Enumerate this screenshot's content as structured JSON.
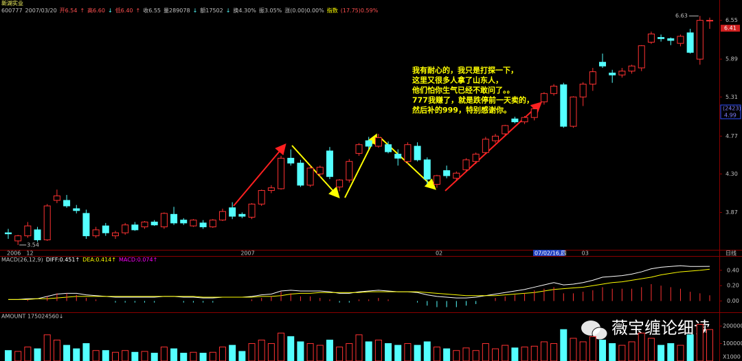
{
  "chart_data": [
    {
      "type": "candlestick",
      "title": "新湖实业",
      "header": [
        {
          "text": "600777",
          "color": "#c0c0c0"
        },
        {
          "text": "2007/03/20",
          "color": "#c0c0c0"
        },
        {
          "text": "开6.54",
          "color": "#ff5050"
        },
        {
          "text": "↑",
          "color": "#ff5050"
        },
        {
          "text": "高6.60",
          "color": "#ff5050"
        },
        {
          "text": "↓",
          "color": "#54ffff"
        },
        {
          "text": "低6.40",
          "color": "#ff5050"
        },
        {
          "text": "↑",
          "color": "#ff5050"
        },
        {
          "text": "收6.55",
          "color": "#c0c0c0"
        },
        {
          "text": "量289078",
          "color": "#c0c0c0"
        },
        {
          "text": "↓",
          "color": "#54ffff"
        },
        {
          "text": "额17502",
          "color": "#c0c0c0"
        },
        {
          "text": "↓",
          "color": "#54ffff"
        },
        {
          "text": "换4.30%",
          "color": "#c0c0c0"
        },
        {
          "text": "振3.05%",
          "color": "#c0c0c0"
        },
        {
          "text": "涨(0.00)0.00%",
          "color": "#c0c0c0"
        },
        {
          "text": "指数",
          "color": "#ffff00"
        },
        {
          "text": "(17.75)0.59%",
          "color": "#ff5050"
        }
      ],
      "categories": [
        "2006",
        null,
        "12",
        null,
        null,
        null,
        null,
        null,
        null,
        null,
        null,
        null,
        null,
        null,
        null,
        null,
        null,
        null,
        null,
        null,
        null,
        null,
        null,
        null,
        "2007",
        null,
        null,
        null,
        null,
        null,
        null,
        null,
        null,
        null,
        null,
        null,
        null,
        null,
        null,
        null,
        null,
        null,
        null,
        null,
        "02",
        null,
        null,
        null,
        null,
        null,
        null,
        null,
        null,
        null,
        null,
        null,
        null,
        null,
        null,
        "03",
        null,
        null,
        null,
        null,
        null,
        null,
        null,
        null,
        null,
        null,
        null,
        null,
        null
      ],
      "open": [
        3.66,
        3.58,
        3.63,
        3.69,
        3.59,
        4.0,
        4.0,
        3.91,
        3.86,
        3.63,
        3.73,
        3.63,
        3.66,
        3.74,
        3.72,
        3.77,
        3.72,
        3.85,
        3.79,
        3.73,
        3.76,
        3.72,
        3.79,
        3.92,
        3.85,
        3.82,
        3.96,
        4.11,
        4.13,
        4.49,
        4.43,
        4.17,
        4.3,
        4.58,
        4.15,
        4.23,
        4.55,
        4.71,
        4.64,
        4.66,
        4.54,
        4.45,
        4.64,
        4.47,
        4.18,
        4.34,
        4.25,
        4.35,
        4.45,
        4.56,
        4.71,
        4.8,
        5.0,
        4.96,
        5.02,
        5.24,
        5.36,
        5.49,
        4.9,
        5.31,
        5.5,
        5.84,
        5.67,
        5.64,
        5.7,
        5.75,
        6.17,
        6.25,
        6.23,
        6.15,
        6.33,
        5.89,
        6.54
      ],
      "high": [
        3.7,
        3.64,
        3.77,
        3.72,
        3.96,
        4.12,
        4.06,
        3.95,
        3.9,
        3.72,
        3.76,
        3.68,
        3.76,
        3.77,
        3.78,
        3.79,
        3.87,
        3.93,
        3.81,
        3.8,
        3.79,
        3.8,
        3.91,
        3.98,
        3.87,
        3.97,
        4.12,
        4.17,
        4.52,
        4.6,
        4.47,
        4.4,
        4.4,
        4.63,
        4.24,
        4.48,
        4.68,
        4.76,
        4.8,
        4.7,
        4.6,
        4.69,
        4.69,
        4.5,
        4.29,
        4.4,
        4.33,
        4.49,
        4.56,
        4.76,
        4.8,
        4.92,
        5.03,
        5.04,
        5.15,
        5.38,
        5.5,
        5.52,
        5.32,
        5.53,
        5.75,
        5.98,
        5.72,
        5.75,
        5.8,
        6.12,
        6.35,
        6.3,
        6.25,
        6.3,
        6.4,
        6.63,
        6.6
      ],
      "low": [
        3.6,
        3.54,
        3.61,
        3.57,
        3.58,
        3.97,
        3.92,
        3.86,
        3.6,
        3.61,
        3.63,
        3.6,
        3.64,
        3.68,
        3.7,
        3.73,
        3.7,
        3.74,
        3.74,
        3.72,
        3.7,
        3.71,
        3.78,
        3.8,
        3.81,
        3.8,
        3.94,
        4.08,
        4.12,
        4.4,
        4.15,
        4.15,
        4.26,
        4.24,
        4.1,
        4.2,
        4.52,
        4.6,
        4.62,
        4.55,
        4.4,
        4.42,
        4.45,
        4.18,
        4.14,
        4.25,
        4.22,
        4.32,
        4.42,
        4.54,
        4.68,
        4.77,
        4.94,
        4.93,
        4.98,
        5.2,
        5.33,
        4.88,
        4.88,
        5.18,
        5.4,
        5.75,
        5.52,
        5.6,
        5.66,
        5.7,
        6.14,
        6.18,
        6.12,
        6.1,
        5.98,
        5.8,
        6.4
      ],
      "close": [
        3.65,
        3.63,
        3.73,
        3.59,
        3.94,
        4.05,
        3.94,
        3.89,
        3.63,
        3.69,
        3.66,
        3.66,
        3.74,
        3.69,
        3.77,
        3.74,
        3.86,
        3.76,
        3.76,
        3.79,
        3.72,
        3.79,
        3.88,
        3.83,
        3.83,
        3.96,
        4.11,
        4.14,
        4.49,
        4.43,
        4.17,
        4.37,
        4.38,
        4.27,
        4.23,
        4.45,
        4.66,
        4.64,
        4.75,
        4.57,
        4.49,
        4.66,
        4.47,
        4.24,
        4.28,
        4.28,
        4.31,
        4.47,
        4.54,
        4.73,
        4.77,
        4.91,
        4.96,
        5.02,
        5.14,
        5.36,
        5.47,
        4.9,
        5.31,
        5.5,
        5.69,
        5.78,
        5.64,
        5.7,
        5.78,
        6.11,
        6.31,
        6.23,
        6.2,
        6.27,
        6.0,
        6.55,
        6.55
      ],
      "up_color": "#ff3232",
      "down_color": "#54ffff",
      "log_scale": true,
      "ylim": [
        3.5,
        6.67
      ],
      "yticks": [
        3.87,
        {
          "value": 4.3,
          "label": "4.30"
        },
        4.77,
        5.31,
        5.89,
        6.55
      ],
      "high_label": "6.63",
      "low_label": "3.54",
      "last_price": 6.41,
      "cursor_price": 4.99,
      "cursor_label": "(2423)",
      "cursor_date": "07/02/16,四",
      "period_label": "日线",
      "note": [
        "我有耐心的，我只是打探一下，",
        "这里又很多人拿了山东人，",
        "他们怕你生气已经不敢问了。。",
        "777我赚了，就是跌停前一天卖的，",
        "然后补的999，特别感谢你。"
      ]
    },
    {
      "type": "line",
      "title": "MACD(26,12,9)",
      "series": [
        {
          "name": "DIFF:0.451↑",
          "color": "#ffffff",
          "values": [
            0.02,
            0.02,
            0.03,
            0.03,
            0.06,
            0.09,
            0.1,
            0.1,
            0.08,
            0.07,
            0.06,
            0.05,
            0.05,
            0.05,
            0.05,
            0.05,
            0.06,
            0.06,
            0.05,
            0.05,
            0.04,
            0.04,
            0.05,
            0.05,
            0.05,
            0.06,
            0.08,
            0.09,
            0.13,
            0.14,
            0.13,
            0.13,
            0.13,
            0.12,
            0.1,
            0.1,
            0.12,
            0.13,
            0.14,
            0.13,
            0.12,
            0.12,
            0.11,
            0.08,
            0.06,
            0.05,
            0.04,
            0.04,
            0.05,
            0.07,
            0.09,
            0.11,
            0.13,
            0.15,
            0.18,
            0.21,
            0.24,
            0.21,
            0.22,
            0.24,
            0.27,
            0.31,
            0.32,
            0.33,
            0.35,
            0.38,
            0.42,
            0.44,
            0.45,
            0.46,
            0.45,
            0.45,
            0.451
          ]
        },
        {
          "name": "DEA:0.414↑",
          "color": "#ffff00",
          "values": [
            0.02,
            0.02,
            0.02,
            0.03,
            0.03,
            0.04,
            0.05,
            0.06,
            0.06,
            0.06,
            0.06,
            0.06,
            0.06,
            0.06,
            0.06,
            0.06,
            0.06,
            0.06,
            0.06,
            0.06,
            0.05,
            0.05,
            0.05,
            0.05,
            0.05,
            0.05,
            0.06,
            0.06,
            0.07,
            0.09,
            0.1,
            0.1,
            0.11,
            0.11,
            0.11,
            0.11,
            0.11,
            0.12,
            0.12,
            0.12,
            0.12,
            0.12,
            0.12,
            0.11,
            0.1,
            0.09,
            0.08,
            0.07,
            0.07,
            0.07,
            0.07,
            0.08,
            0.09,
            0.1,
            0.11,
            0.13,
            0.15,
            0.16,
            0.17,
            0.18,
            0.2,
            0.22,
            0.24,
            0.25,
            0.27,
            0.29,
            0.31,
            0.34,
            0.36,
            0.38,
            0.39,
            0.4,
            0.414
          ]
        },
        {
          "name": "MACD:0.074↑",
          "color": "#ff00ff",
          "style": "bar",
          "bar_colors": [
            "#ff3232",
            "#54ffff"
          ],
          "values": [
            0,
            0,
            0.02,
            0,
            0.06,
            0.1,
            0.1,
            0.08,
            0.04,
            0.02,
            0,
            -0.02,
            -0.02,
            -0.02,
            -0.02,
            -0.02,
            0,
            0,
            -0.02,
            -0.02,
            -0.02,
            -0.02,
            0,
            0,
            0,
            0.02,
            0.04,
            0.06,
            0.12,
            0.1,
            0.06,
            0.06,
            0.04,
            0.02,
            -0.02,
            -0.02,
            0.02,
            0.02,
            0.04,
            0.02,
            0,
            0,
            -0.02,
            -0.06,
            -0.08,
            -0.08,
            -0.08,
            -0.06,
            -0.04,
            0,
            0.04,
            0.06,
            0.08,
            0.1,
            0.14,
            0.16,
            0.18,
            0.1,
            0.1,
            0.12,
            0.14,
            0.18,
            0.16,
            0.16,
            0.16,
            0.18,
            0.22,
            0.2,
            0.18,
            0.16,
            0.12,
            0.1,
            0.074
          ]
        }
      ],
      "ylim": [
        -0.12,
        0.47
      ],
      "yticks": [
        {
          "value": 0.4,
          "label": "0.40"
        },
        {
          "value": 0.2,
          "label": "0.20"
        },
        {
          "value": 0,
          "label": "0.00"
        }
      ]
    },
    {
      "type": "bar",
      "title": "AMOUNT 175024560↓",
      "values": [
        60000,
        55000,
        80000,
        70000,
        150000,
        120000,
        90000,
        70000,
        100000,
        60000,
        60000,
        50000,
        60000,
        50000,
        55000,
        45000,
        80000,
        70000,
        45000,
        50000,
        45000,
        50000,
        80000,
        90000,
        55000,
        100000,
        120000,
        100000,
        160000,
        140000,
        110000,
        100000,
        90000,
        120000,
        80000,
        100000,
        150000,
        110000,
        120000,
        100000,
        90000,
        100000,
        90000,
        110000,
        80000,
        70000,
        60000,
        75000,
        60000,
        100000,
        70000,
        90000,
        75000,
        80000,
        85000,
        110000,
        100000,
        180000,
        130000,
        110000,
        140000,
        120000,
        100000,
        90000,
        110000,
        160000,
        130000,
        90000,
        100000,
        90000,
        150000,
        210000,
        180000
      ],
      "ylim": [
        0,
        220000
      ],
      "yticks": [
        100000,
        200000
      ],
      "unit_label": "X1000"
    }
  ],
  "watermark": "薇宝缠论细读"
}
